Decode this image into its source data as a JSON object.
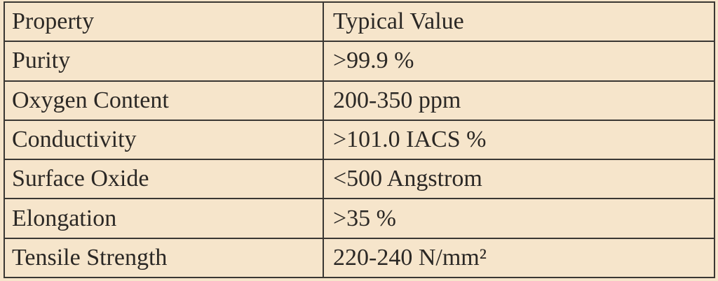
{
  "table": {
    "header": [
      "Property",
      "Typical Value"
    ],
    "rows": [
      [
        "Purity",
        ">99.9 %"
      ],
      [
        "Oxygen Content",
        "200-350 ppm"
      ],
      [
        "Conductivity",
        ">101.0 IACS %"
      ],
      [
        "Surface Oxide",
        "<500 Angstrom"
      ],
      [
        "Elongation",
        ">35 %"
      ],
      [
        "Tensile Strength",
        "220-240 N/mm²"
      ]
    ]
  }
}
